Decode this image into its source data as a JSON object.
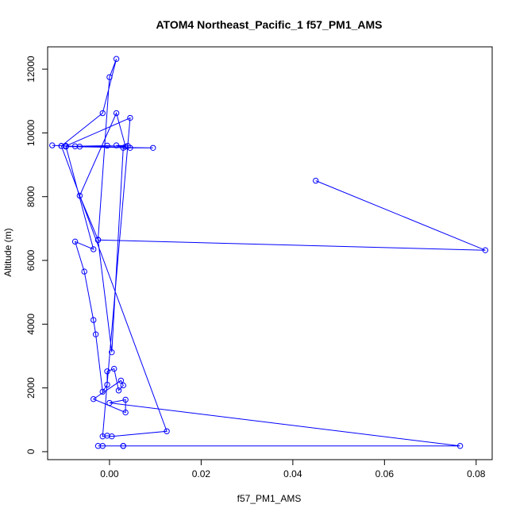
{
  "chart_data": {
    "type": "line",
    "title": "ATOM4 Northeast_Pacific_1 f57_PM1_AMS",
    "xlabel": "f57_PM1_AMS",
    "ylabel": "Altitude (m)",
    "xlim": [
      -0.0135,
      0.0835
    ],
    "ylim": [
      -250,
      12700
    ],
    "xticks": [
      0.0,
      0.02,
      0.04,
      0.06,
      0.08
    ],
    "xtick_labels": [
      "0.00",
      "0.02",
      "0.04",
      "0.06",
      "0.08"
    ],
    "yticks": [
      0,
      2000,
      4000,
      6000,
      8000,
      10000,
      12000
    ],
    "ytick_labels": [
      "0",
      "2000",
      "4000",
      "6000",
      "8000",
      "10000",
      "12000"
    ],
    "grid": false,
    "color": "#0000ff",
    "marker": "open-circle",
    "series": [
      {
        "x": [
          0.003,
          -0.0025,
          -0.0015,
          0.003,
          0.0765,
          0.0,
          0.0035,
          0.0035,
          -0.0035,
          0.0025,
          0.003,
          0.002,
          0.001,
          -0.0005,
          -0.0005,
          -0.0015,
          -0.003,
          -0.0035,
          -0.0055,
          -0.0075,
          -0.0035,
          -0.0095,
          0.0095,
          0.0045,
          -0.0105,
          -0.0075,
          -0.0005,
          0.0035,
          0.0015,
          -0.0065,
          -0.0025,
          0.0,
          0.0015,
          -0.0015,
          -0.0105,
          0.0125,
          0.0005,
          -0.0005,
          -0.0015,
          0.0045,
          -0.0095,
          -0.0125,
          -0.0065,
          0.004,
          0.0015,
          0.003,
          0.0005,
          -0.0025,
          0.082,
          0.045
        ],
        "y": [
          180,
          180,
          180,
          180,
          180,
          1530,
          1630,
          1230,
          1650,
          2230,
          2080,
          1920,
          2600,
          2520,
          2100,
          1880,
          3680,
          4130,
          5650,
          6590,
          6350,
          9570,
          9530,
          9530,
          9590,
          9580,
          9600,
          9570,
          10620,
          8030,
          6650,
          11750,
          12320,
          10620,
          9590,
          640,
          480,
          500,
          480,
          10470,
          9590,
          9610,
          9570,
          9590,
          9610,
          9530,
          3120,
          6640,
          6320,
          8500
        ]
      }
    ]
  }
}
